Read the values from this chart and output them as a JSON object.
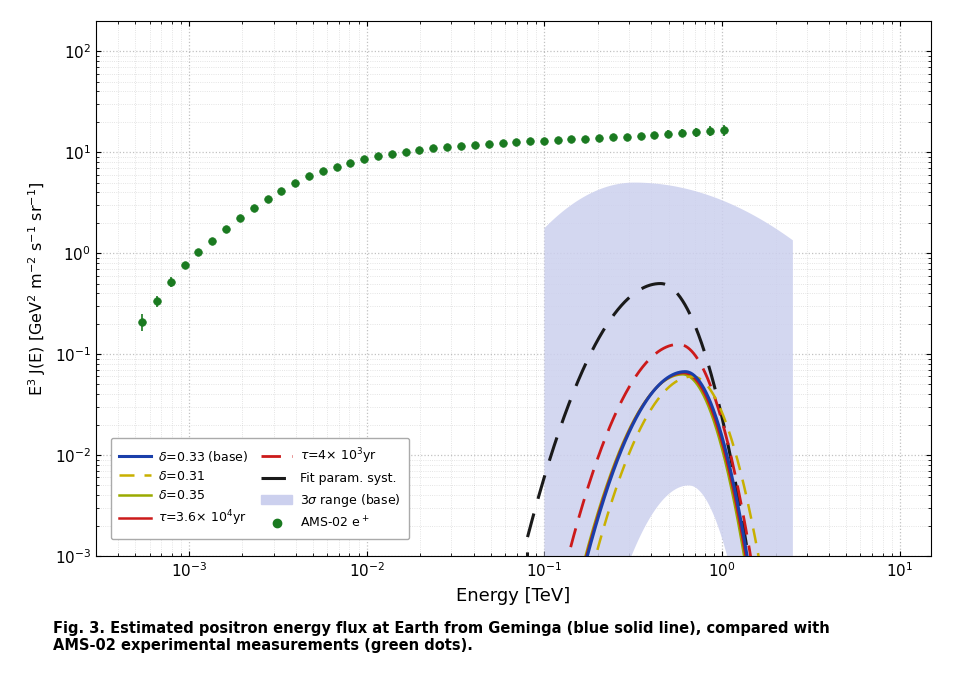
{
  "xlabel": "Energy [TeV]",
  "xlim": [
    0.0003,
    15
  ],
  "ylim": [
    0.001,
    200
  ],
  "caption_line1": "Fig. 3. Estimated positron energy flux at Earth from Geminga (blue solid line), compared with",
  "caption_line2": "AMS-02 experimental measurements (green dots).",
  "background_color": "#ffffff",
  "grid_color": "#999999",
  "colors": {
    "base": "#1a3faa",
    "d031": "#c8b000",
    "d035": "#9aaa00",
    "tau_long": "#cc1a1a",
    "tau_short": "#cc1a1a",
    "fit_sys": "#1a1a1a",
    "band": "#ccd0ee",
    "ams": "#1a7a20"
  },
  "ams02_x": [
    0.000545,
    0.000659,
    0.000793,
    0.000946,
    0.00113,
    0.00135,
    0.00162,
    0.00194,
    0.00232,
    0.00277,
    0.00331,
    0.00396,
    0.00474,
    0.00566,
    0.00677,
    0.0081,
    0.00969,
    0.0116,
    0.0138,
    0.0166,
    0.0198,
    0.0237,
    0.0284,
    0.034,
    0.0406,
    0.0486,
    0.0581,
    0.0695,
    0.0831,
    0.0994,
    0.119,
    0.142,
    0.17,
    0.203,
    0.243,
    0.291,
    0.348,
    0.416,
    0.498,
    0.596,
    0.713,
    0.853,
    1.02
  ],
  "ams02_y": [
    0.21,
    0.335,
    0.52,
    0.76,
    1.02,
    1.32,
    1.72,
    2.22,
    2.8,
    3.42,
    4.1,
    5.0,
    5.8,
    6.5,
    7.2,
    7.9,
    8.52,
    9.1,
    9.62,
    10.1,
    10.52,
    10.9,
    11.22,
    11.52,
    11.82,
    12.1,
    12.42,
    12.62,
    12.82,
    13.02,
    13.22,
    13.42,
    13.62,
    13.72,
    14.0,
    14.22,
    14.52,
    14.82,
    15.12,
    15.42,
    15.82,
    16.22,
    16.52
  ],
  "ams02_yerr_lo": [
    0.04,
    0.045,
    0.055,
    0.065,
    0.08,
    0.1,
    0.12,
    0.14,
    0.18,
    0.2,
    0.24,
    0.28,
    0.3,
    0.32,
    0.35,
    0.38,
    0.4,
    0.42,
    0.45,
    0.48,
    0.5,
    0.52,
    0.55,
    0.58,
    0.6,
    0.62,
    0.65,
    0.68,
    0.7,
    0.72,
    0.75,
    0.8,
    0.85,
    0.9,
    0.95,
    1.0,
    1.1,
    1.2,
    1.3,
    1.4,
    1.6,
    1.8,
    2.2
  ],
  "ams02_yerr_hi": [
    0.04,
    0.045,
    0.055,
    0.065,
    0.08,
    0.1,
    0.12,
    0.14,
    0.18,
    0.2,
    0.24,
    0.28,
    0.3,
    0.32,
    0.35,
    0.38,
    0.4,
    0.42,
    0.45,
    0.48,
    0.5,
    0.52,
    0.55,
    0.58,
    0.6,
    0.62,
    0.65,
    0.68,
    0.7,
    0.72,
    0.75,
    0.8,
    0.85,
    0.9,
    0.95,
    1.0,
    1.1,
    1.2,
    1.3,
    1.4,
    1.6,
    1.8,
    2.2
  ]
}
